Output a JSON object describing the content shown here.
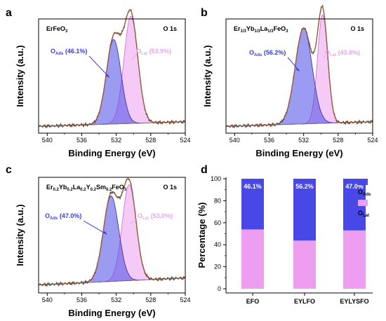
{
  "colors": {
    "ads_fill": "#4848e6",
    "ads_stroke": "#2a2aa8",
    "lat_fill": "#ee9ef0",
    "lat_stroke": "#c86ad0",
    "envelope": "#a05a3a",
    "raw": "#303030",
    "baseline": "#777777"
  },
  "panels": [
    {
      "letter": "a",
      "sample_label": {
        "segments": [
          {
            "t": "ErFeO",
            "sub": false
          },
          {
            "t": "3",
            "sub": true
          }
        ]
      },
      "region": "O 1s",
      "ads_label": "O",
      "ads_sub": "Ads",
      "ads_value": "(46.1%)",
      "lat_label": "O",
      "lat_sub": "Lat",
      "lat_value": "(53.9%)",
      "xlabel": "Binding Energy (eV)",
      "ylabel": "Intensity (a.u.)"
    },
    {
      "letter": "b",
      "sample_label": {
        "segments": [
          {
            "t": "Er",
            "sub": false
          },
          {
            "t": "1/3",
            "sub": true
          },
          {
            "t": "Yb",
            "sub": false
          },
          {
            "t": "1/3",
            "sub": true
          },
          {
            "t": "La",
            "sub": false
          },
          {
            "t": "1/3",
            "sub": true
          },
          {
            "t": "FeO",
            "sub": false
          },
          {
            "t": "3",
            "sub": true
          }
        ]
      },
      "region": "O 1s",
      "ads_label": "O",
      "ads_sub": "Ads",
      "ads_value": "(56.2%)",
      "lat_label": "O",
      "lat_sub": "Lat",
      "lat_value": "(43.8%)",
      "xlabel": "Binding Energy (eV)",
      "ylabel": "Intensity (a.u.)"
    },
    {
      "letter": "c",
      "sample_label": {
        "segments": [
          {
            "t": "Er",
            "sub": false
          },
          {
            "t": "0.2",
            "sub": true
          },
          {
            "t": "Yb",
            "sub": false
          },
          {
            "t": "0.2",
            "sub": true
          },
          {
            "t": "La",
            "sub": false
          },
          {
            "t": "0.2",
            "sub": true
          },
          {
            "t": "Y",
            "sub": false
          },
          {
            "t": "0.2",
            "sub": true
          },
          {
            "t": "Sm",
            "sub": false
          },
          {
            "t": "0.2",
            "sub": true
          },
          {
            "t": "FeO",
            "sub": false
          },
          {
            "t": "3",
            "sub": true
          }
        ]
      },
      "region": "O 1s",
      "ads_label": "O",
      "ads_sub": "Ads",
      "ads_value": "(47.0%)",
      "lat_label": "O",
      "lat_sub": "Lat",
      "lat_value": "(53.0%)",
      "xlabel": "Binding Energy (eV)",
      "ylabel": "Intensity (a.u.)"
    },
    {
      "letter": "d",
      "ylabel": "Percentage (%)",
      "legend_ads_label": "O",
      "legend_ads_sub": "Ads",
      "legend_lat_label": "O",
      "legend_lat_sub": "Lat"
    }
  ],
  "chart_data": [
    {
      "type": "area",
      "panel": "a",
      "xlabel": "Binding Energy (eV)",
      "ylabel": "Intensity (a.u.)",
      "xlim": [
        541,
        524
      ],
      "x_reversed": true,
      "xticks": [
        540,
        536,
        532,
        528,
        524
      ],
      "yticks_shown": false,
      "series": [
        {
          "name": "OAds",
          "center": 532.3,
          "fwhm": 2.0,
          "percent": 46.1
        },
        {
          "name": "OLat",
          "center": 530.3,
          "fwhm": 1.9,
          "percent": 53.9
        }
      ]
    },
    {
      "type": "area",
      "panel": "b",
      "xlabel": "Binding Energy (eV)",
      "ylabel": "Intensity (a.u.)",
      "xlim": [
        541,
        524
      ],
      "x_reversed": true,
      "xticks": [
        540,
        536,
        532,
        528,
        524
      ],
      "yticks_shown": false,
      "series": [
        {
          "name": "OAds",
          "center": 532.0,
          "fwhm": 2.3,
          "percent": 56.2
        },
        {
          "name": "OLat",
          "center": 529.8,
          "fwhm": 1.4,
          "percent": 43.8
        }
      ]
    },
    {
      "type": "area",
      "panel": "c",
      "xlabel": "Binding Energy (eV)",
      "ylabel": "Intensity (a.u.)",
      "xlim": [
        541,
        524
      ],
      "x_reversed": true,
      "xticks": [
        540,
        536,
        532,
        528,
        524
      ],
      "yticks_shown": false,
      "series": [
        {
          "name": "OAds",
          "center": 532.6,
          "fwhm": 2.1,
          "percent": 47.0
        },
        {
          "name": "OLat",
          "center": 530.5,
          "fwhm": 1.9,
          "percent": 53.0
        }
      ]
    },
    {
      "type": "bar",
      "panel": "d",
      "stacked": true,
      "categories": [
        "EFO",
        "EYLFO",
        "EYLYSFO"
      ],
      "ylabel": "Percentage (%)",
      "ylim": [
        0,
        100
      ],
      "yticks": [
        0,
        20,
        40,
        60,
        80,
        100
      ],
      "series": [
        {
          "name": "OLat",
          "values": [
            53.9,
            43.8,
            53.0
          ]
        },
        {
          "name": "OAds",
          "values": [
            46.1,
            56.2,
            47.0
          ]
        }
      ],
      "bar_labels": [
        "46.1%",
        "56.2%",
        "47.0%"
      ],
      "legend": "top-right"
    }
  ]
}
